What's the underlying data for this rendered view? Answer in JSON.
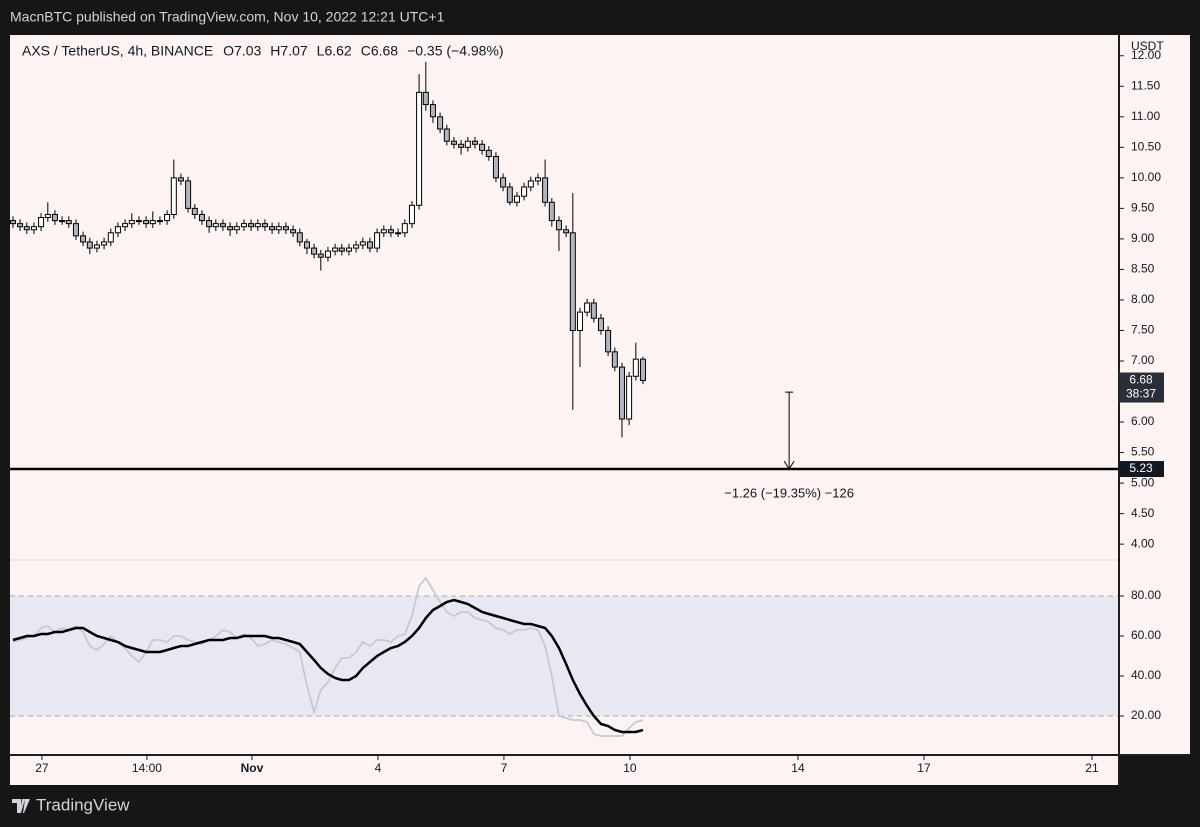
{
  "header": {
    "publisher": "MacnBTC published on TradingView.com, Nov 10, 2022 12:21 UTC+1"
  },
  "footer": {
    "brand": "TradingView"
  },
  "chart_data": {
    "type": "candlestick",
    "title": "AXS / TetherUS, 4h, BINANCE",
    "legend_values": [
      "O7.03",
      "H7.07",
      "L6.62",
      "C6.68",
      "−0.35 (−4.98%)"
    ],
    "x": [
      -0.69,
      -0.52,
      -0.36,
      -0.19,
      -0.02,
      0.14,
      0.31,
      0.48,
      0.64,
      0.81,
      0.98,
      1.14,
      1.31,
      1.48,
      1.64,
      1.81,
      1.98,
      2.14,
      2.31,
      2.48,
      2.64,
      2.81,
      2.98,
      3.14,
      3.31,
      3.48,
      3.64,
      3.81,
      3.98,
      4.14,
      4.31,
      4.48,
      4.64,
      4.81,
      4.98,
      5.14,
      5.31,
      5.48,
      5.64,
      5.81,
      5.98,
      6.14,
      6.31,
      6.48,
      6.64,
      6.81,
      6.98,
      7.14,
      7.31,
      7.48,
      7.64,
      7.81,
      7.98,
      8.14,
      8.31,
      8.48,
      8.64,
      8.81,
      8.98,
      9.14,
      9.31,
      9.48,
      9.64,
      9.81,
      9.98,
      10.14,
      10.31,
      10.48,
      10.64,
      10.81,
      10.98,
      11.14,
      11.31,
      11.48,
      11.64,
      11.81,
      11.98,
      12.14,
      12.31,
      12.48,
      12.64,
      12.81,
      12.98,
      13.14,
      13.31,
      13.48,
      13.64,
      13.81,
      13.98,
      14.14,
      14.31
    ],
    "open": [
      9.3,
      9.25,
      9.2,
      9.15,
      9.2,
      9.35,
      9.4,
      9.3,
      9.3,
      9.25,
      9.05,
      8.95,
      8.85,
      8.9,
      8.95,
      9.1,
      9.2,
      9.25,
      9.3,
      9.3,
      9.25,
      9.3,
      9.3,
      9.4,
      10.0,
      9.95,
      9.5,
      9.4,
      9.3,
      9.2,
      9.25,
      9.2,
      9.15,
      9.2,
      9.25,
      9.2,
      9.25,
      9.2,
      9.15,
      9.2,
      9.15,
      9.1,
      8.95,
      8.85,
      8.75,
      8.7,
      8.8,
      8.85,
      8.8,
      8.85,
      8.9,
      8.95,
      8.85,
      9.1,
      9.15,
      9.1,
      9.1,
      9.25,
      9.55,
      11.4,
      11.2,
      11.0,
      10.8,
      10.6,
      10.55,
      10.5,
      10.6,
      10.55,
      10.45,
      10.35,
      10.0,
      9.85,
      9.6,
      9.7,
      9.85,
      9.95,
      10.0,
      9.6,
      9.3,
      9.15,
      9.1,
      7.5,
      7.8,
      7.95,
      7.7,
      7.5,
      7.15,
      6.9,
      6.05,
      6.75,
      7.03
    ],
    "high": [
      9.37,
      9.32,
      9.27,
      9.27,
      9.42,
      9.6,
      9.47,
      9.37,
      9.37,
      9.32,
      9.12,
      9.02,
      8.97,
      9.02,
      9.17,
      9.27,
      9.32,
      9.42,
      9.37,
      9.37,
      9.45,
      9.37,
      9.47,
      10.3,
      10.07,
      10.02,
      9.57,
      9.47,
      9.37,
      9.32,
      9.32,
      9.27,
      9.27,
      9.32,
      9.32,
      9.32,
      9.32,
      9.27,
      9.27,
      9.27,
      9.22,
      9.17,
      9.0,
      8.92,
      8.82,
      8.87,
      8.92,
      8.92,
      8.92,
      8.97,
      9.02,
      9.02,
      9.17,
      9.22,
      9.22,
      9.17,
      9.32,
      9.62,
      11.7,
      11.9,
      11.27,
      11.07,
      10.87,
      10.67,
      10.62,
      10.67,
      10.67,
      10.62,
      10.52,
      10.42,
      10.07,
      9.92,
      9.77,
      9.92,
      10.02,
      10.07,
      10.3,
      9.67,
      9.37,
      9.22,
      9.75,
      7.87,
      8.02,
      8.02,
      7.77,
      7.57,
      7.22,
      6.97,
      6.82,
      7.3,
      7.07
    ],
    "low": [
      9.18,
      9.13,
      9.08,
      9.08,
      9.13,
      9.28,
      9.23,
      9.23,
      9.18,
      8.98,
      8.88,
      8.75,
      8.78,
      8.83,
      8.88,
      9.03,
      9.13,
      9.18,
      9.23,
      9.18,
      9.18,
      9.23,
      9.23,
      9.33,
      9.88,
      9.43,
      9.33,
      9.23,
      9.1,
      9.13,
      9.13,
      9.05,
      9.08,
      9.13,
      9.13,
      9.13,
      9.13,
      9.08,
      9.08,
      9.08,
      9.03,
      8.88,
      8.75,
      8.68,
      8.48,
      8.63,
      8.73,
      8.73,
      8.73,
      8.78,
      8.83,
      8.78,
      8.78,
      9.03,
      9.03,
      9.03,
      9.03,
      9.18,
      9.48,
      11.1,
      10.9,
      10.73,
      10.53,
      10.48,
      10.38,
      10.43,
      10.48,
      10.38,
      10.28,
      9.93,
      9.78,
      9.55,
      9.53,
      9.63,
      9.78,
      9.88,
      9.53,
      9.2,
      8.8,
      9.03,
      6.2,
      6.9,
      7.73,
      7.63,
      7.43,
      7.08,
      6.83,
      5.75,
      5.95,
      6.68,
      6.62
    ],
    "close": [
      9.25,
      9.2,
      9.15,
      9.2,
      9.35,
      9.4,
      9.3,
      9.3,
      9.25,
      9.05,
      8.95,
      8.85,
      8.9,
      8.95,
      9.1,
      9.2,
      9.25,
      9.3,
      9.3,
      9.25,
      9.3,
      9.3,
      9.4,
      10.0,
      9.95,
      9.5,
      9.4,
      9.3,
      9.2,
      9.25,
      9.2,
      9.15,
      9.2,
      9.25,
      9.2,
      9.25,
      9.2,
      9.15,
      9.2,
      9.15,
      9.1,
      8.95,
      8.85,
      8.75,
      8.7,
      8.8,
      8.85,
      8.8,
      8.85,
      8.9,
      8.95,
      8.85,
      9.1,
      9.15,
      9.1,
      9.1,
      9.25,
      9.55,
      11.4,
      11.2,
      11.0,
      10.8,
      10.6,
      10.55,
      10.5,
      10.6,
      10.55,
      10.45,
      10.35,
      10.0,
      9.85,
      9.6,
      9.7,
      9.85,
      9.95,
      10.0,
      9.6,
      9.3,
      9.15,
      9.1,
      7.5,
      7.8,
      7.95,
      7.7,
      7.5,
      7.15,
      6.9,
      6.05,
      6.75,
      7.03,
      6.68
    ],
    "up_color": "#ffffff",
    "down_color": "#b2b5be",
    "wick_color": "#000000",
    "xlim": [
      -0.76,
      25.62
    ],
    "xticks": [
      {
        "value": 0,
        "label": "27"
      },
      {
        "value": 2.5,
        "label": "14:00"
      },
      {
        "value": 5,
        "label": "Nov"
      },
      {
        "value": 8,
        "label": "4"
      },
      {
        "value": 11,
        "label": "7"
      },
      {
        "value": 14,
        "label": "10"
      },
      {
        "value": 18,
        "label": "14"
      },
      {
        "value": 21,
        "label": "17"
      },
      {
        "value": 25,
        "label": "21"
      }
    ],
    "y_unit": "USDT",
    "ylim": [
      3.74,
      12.34
    ],
    "yticks": [
      {
        "value": 4,
        "label": "4.00"
      },
      {
        "value": 4.5,
        "label": "4.50"
      },
      {
        "value": 5,
        "label": "5.00"
      },
      {
        "value": 5.5,
        "label": "5.50"
      },
      {
        "value": 6,
        "label": "6.00"
      },
      {
        "value": 6.5,
        "label": "6.50"
      },
      {
        "value": 7,
        "label": "7.00"
      },
      {
        "value": 7.5,
        "label": "7.50"
      },
      {
        "value": 8,
        "label": "8.00"
      },
      {
        "value": 8.5,
        "label": "8.50"
      },
      {
        "value": 9,
        "label": "9.00"
      },
      {
        "value": 9.5,
        "label": "9.50"
      },
      {
        "value": 10,
        "label": "10.00"
      },
      {
        "value": 10.5,
        "label": "10.50"
      },
      {
        "value": 11,
        "label": "11.00"
      },
      {
        "value": 11.5,
        "label": "11.50"
      },
      {
        "value": 12,
        "label": "12.00"
      }
    ],
    "last_price": {
      "value": 6.68,
      "countdown": "38:37"
    },
    "horizontal_line": 5.23,
    "measure": {
      "x": 17.79,
      "from": 6.49,
      "to": 5.23,
      "label": "−1.26 (−19.35%) −126"
    },
    "indicator": {
      "type": "line",
      "ylim": [
        0.5,
        98
      ],
      "yticks": [
        {
          "value": 20,
          "label": "20.00"
        },
        {
          "value": 40,
          "label": "40.00"
        },
        {
          "value": 60,
          "label": "60.00"
        },
        {
          "value": 80,
          "label": "80.00"
        }
      ],
      "band": [
        20,
        80
      ],
      "band_color": "#e9e8f2",
      "series": [
        {
          "color": "#c3c9d8",
          "values": [
            57,
            58,
            59,
            60,
            64,
            65,
            62,
            64,
            63,
            65,
            62,
            55,
            53,
            56,
            60,
            57,
            54,
            50,
            47,
            52,
            58,
            58,
            57,
            60,
            60,
            58,
            57,
            56,
            58,
            60,
            63,
            62,
            59,
            61,
            59,
            55,
            56,
            58,
            57,
            56,
            54,
            52,
            35,
            22,
            33,
            37,
            44,
            49,
            49,
            52,
            57,
            55,
            58,
            58,
            57,
            60,
            61,
            70,
            85,
            89,
            83,
            77,
            72,
            70,
            72,
            72,
            69,
            68,
            67,
            64,
            63,
            61,
            63,
            63,
            64,
            63,
            55,
            40,
            20,
            19,
            18,
            18,
            17,
            11,
            10,
            10,
            10,
            10,
            14,
            17,
            18
          ]
        },
        {
          "color": "#000000",
          "values": [
            58,
            59,
            60,
            60,
            61,
            61,
            62,
            62,
            63,
            64,
            64,
            62,
            60,
            59,
            58,
            57,
            55,
            54,
            53,
            52,
            52,
            52,
            53,
            54,
            55,
            55,
            56,
            57,
            58,
            58,
            58,
            59,
            59,
            60,
            60,
            60,
            60,
            59,
            59,
            58,
            57,
            56,
            52,
            48,
            44,
            41,
            39,
            38,
            38,
            40,
            44,
            47,
            50,
            52,
            54,
            55,
            57,
            60,
            64,
            69,
            73,
            75,
            77,
            78,
            77,
            76,
            74,
            72,
            71,
            70,
            69,
            68,
            67,
            66,
            66,
            65,
            64,
            60,
            54,
            46,
            38,
            31,
            25,
            20,
            16,
            15,
            13,
            12,
            12,
            12,
            13
          ]
        }
      ]
    }
  }
}
